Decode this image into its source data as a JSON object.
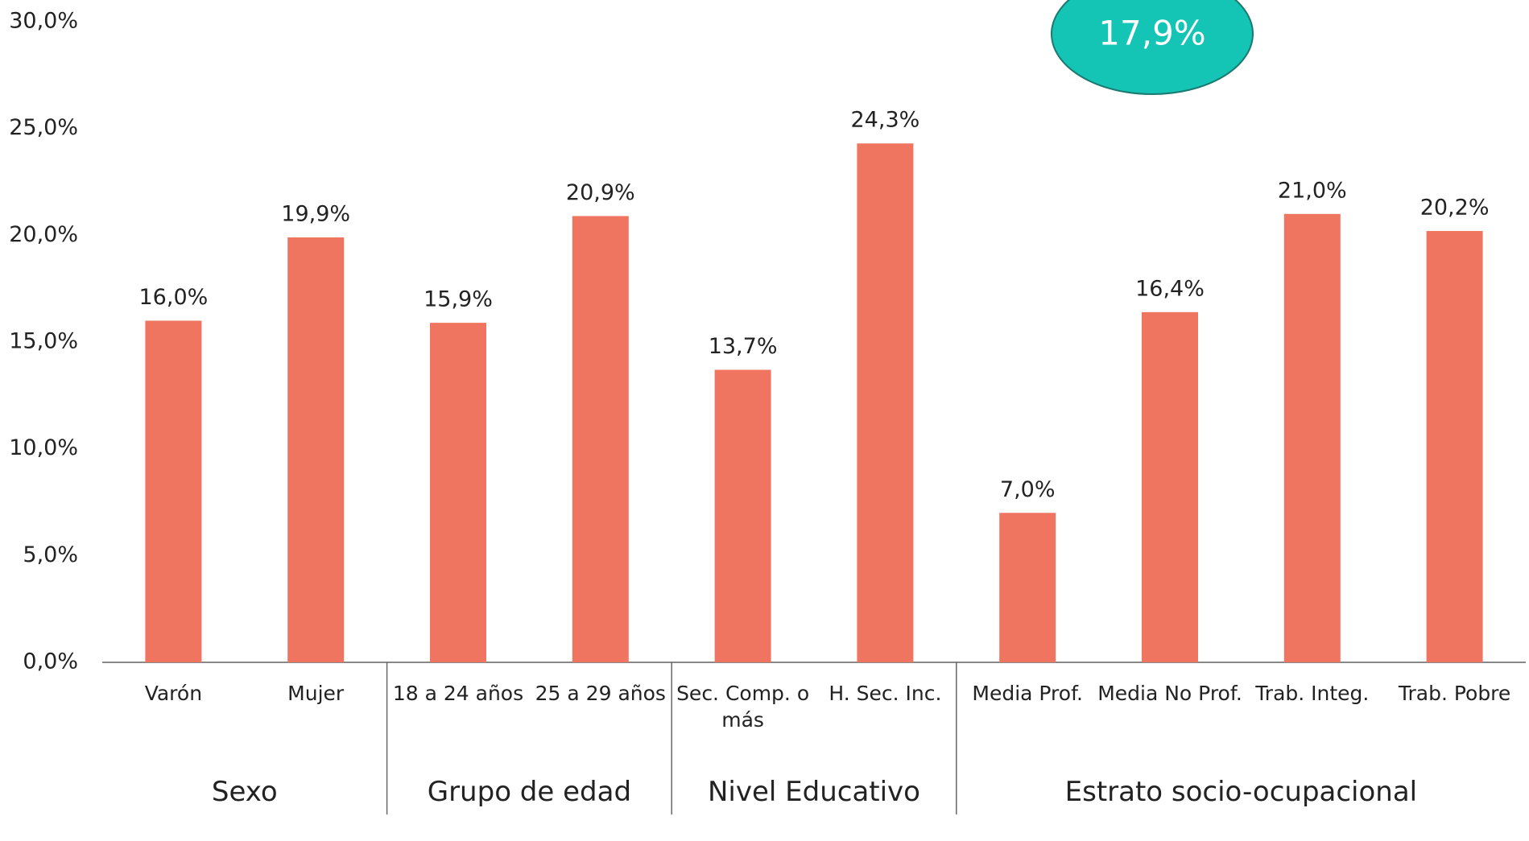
{
  "chart_data": {
    "type": "bar",
    "color": "#f07560",
    "groups": [
      {
        "name": "Sexo",
        "categories": [
          "Varón",
          "Mujer"
        ],
        "values": [
          16.0,
          19.9
        ],
        "value_labels": [
          "16,0%",
          "19,9%"
        ]
      },
      {
        "name": "Grupo de edad",
        "categories": [
          "18 a 24 años",
          "25 a 29 años"
        ],
        "values": [
          15.9,
          20.9
        ],
        "value_labels": [
          "15,9%",
          "20,9%"
        ]
      },
      {
        "name": "Nivel Educativo",
        "categories": [
          "Sec. Comp. o más",
          "H. Sec. Inc."
        ],
        "values": [
          13.7,
          24.3
        ],
        "value_labels": [
          "13,7%",
          "24,3%"
        ]
      },
      {
        "name": "Estrato socio-ocupacional",
        "categories": [
          "Media Prof.",
          "Media No Prof.",
          "Trab. Integ.",
          "Trab. Pobre"
        ],
        "values": [
          7.0,
          16.4,
          21.0,
          20.2
        ],
        "value_labels": [
          "7,0%",
          "16,4%",
          "21,0%",
          "20,2%"
        ]
      }
    ],
    "annotation": "17,9%",
    "ylim": [
      0,
      30
    ],
    "yticks": [
      {
        "value": 0,
        "label": "0,0%"
      },
      {
        "value": 5,
        "label": "5,0%"
      },
      {
        "value": 10,
        "label": "10,0%"
      },
      {
        "value": 15,
        "label": "15,0%"
      },
      {
        "value": 20,
        "label": "20,0%"
      },
      {
        "value": 25,
        "label": "25,0%"
      },
      {
        "value": 30,
        "label": "30,0%"
      }
    ]
  }
}
